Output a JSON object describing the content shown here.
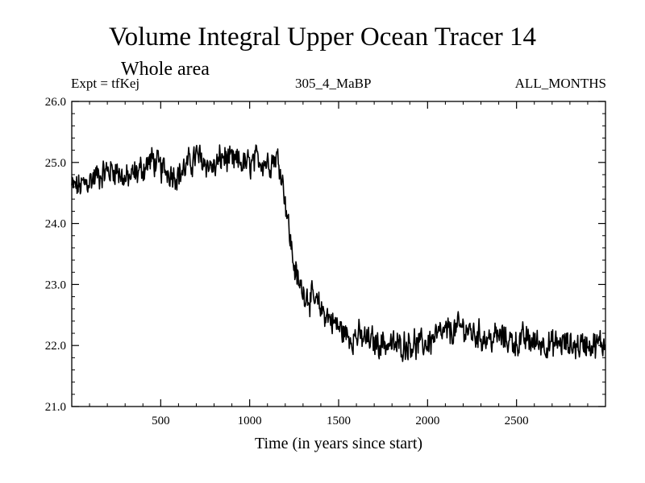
{
  "chart_data": {
    "type": "line",
    "title": "Volume Integral Upper Ocean Tracer 14",
    "subtitle": "Whole area",
    "header_left": "Expt = tfKej",
    "header_center": "305_4_MaBP",
    "header_right": "ALL_MONTHS",
    "xlabel": "Time (in years since start)",
    "ylabel": "",
    "xlim": [
      0,
      3000
    ],
    "ylim": [
      21.0,
      26.0
    ],
    "x_ticks": [
      500,
      1000,
      1500,
      2000,
      2500
    ],
    "x_tick_labels": [
      "500",
      "1000",
      "1500",
      "2000",
      "2500"
    ],
    "y_ticks": [
      21.0,
      22.0,
      23.0,
      24.0,
      25.0,
      26.0
    ],
    "y_tick_labels": [
      "21.0",
      "22.0",
      "23.0",
      "24.0",
      "25.0",
      "26.0"
    ],
    "grid": false,
    "legend": "none",
    "series": [
      {
        "color": "#000000",
        "x": [
          0,
          50,
          100,
          150,
          200,
          250,
          300,
          350,
          400,
          450,
          500,
          550,
          600,
          650,
          700,
          750,
          800,
          850,
          900,
          950,
          1000,
          1050,
          1100,
          1150,
          1175,
          1200,
          1225,
          1250,
          1275,
          1300,
          1350,
          1400,
          1450,
          1500,
          1550,
          1600,
          1650,
          1700,
          1750,
          1800,
          1850,
          1900,
          1950,
          2000,
          2050,
          2100,
          2150,
          2200,
          2250,
          2300,
          2350,
          2400,
          2450,
          2500,
          2550,
          2600,
          2650,
          2700,
          2750,
          2800,
          2850,
          2900,
          2950,
          3000
        ],
        "y": [
          24.6,
          24.6,
          24.7,
          24.8,
          24.85,
          24.9,
          24.7,
          24.8,
          24.9,
          25.05,
          24.9,
          24.85,
          24.8,
          24.95,
          25.1,
          25.0,
          24.9,
          25.1,
          25.0,
          25.0,
          24.95,
          25.05,
          25.0,
          25.1,
          24.9,
          24.4,
          23.8,
          23.3,
          23.0,
          22.9,
          22.75,
          22.6,
          22.45,
          22.3,
          22.15,
          22.15,
          22.1,
          22.05,
          22.05,
          22.0,
          22.0,
          22.05,
          22.0,
          22.05,
          22.15,
          22.2,
          22.25,
          22.3,
          22.2,
          22.15,
          22.1,
          22.15,
          22.1,
          22.05,
          22.1,
          22.05,
          22.05,
          22.0,
          22.05,
          22.0,
          22.0,
          22.05,
          22.0,
          22.05
        ]
      }
    ]
  }
}
